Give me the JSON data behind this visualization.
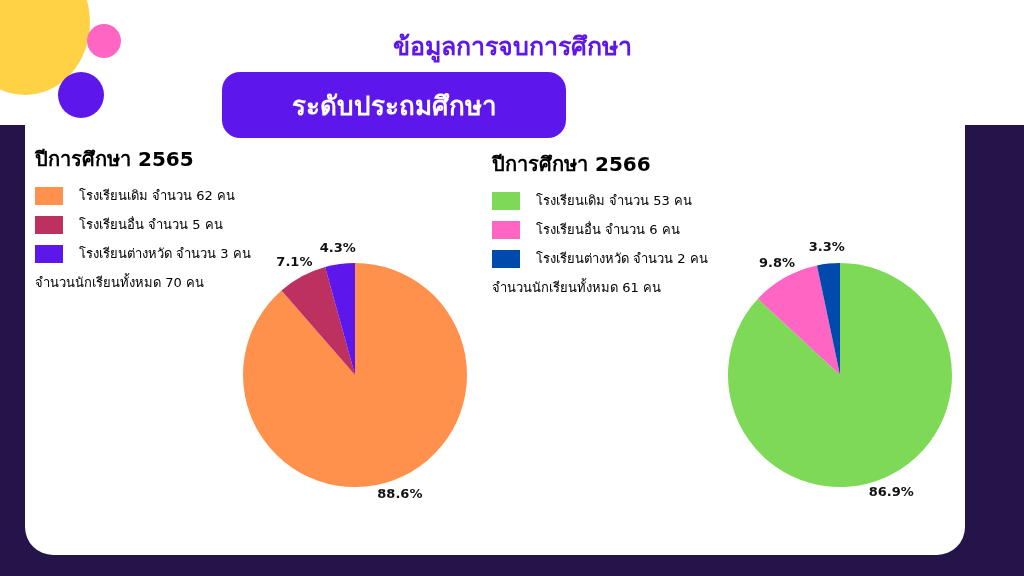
{
  "chart_data": [
    {
      "type": "pie",
      "title": "ปีการศึกษา 2565",
      "categories": [
        "โรงเรียนเดิม จำนวน 62 คน",
        "โรงเรียนอื่น จำนวน 5 คน",
        "โรงเรียนต่างหวัด จำนวน 3 คน"
      ],
      "values": [
        88.6,
        7.1,
        4.3
      ],
      "colors": [
        "#ff914d",
        "#bd3160",
        "#5e17eb"
      ],
      "value_labels": [
        "88.6%",
        "7.1%",
        "4.3%"
      ],
      "legend": "left",
      "annotations": [
        "ข้อมูลการจบการศึกษา",
        "ระดับประถมศึกษา",
        "จำนวนนักเรียนทั้งหมด 70 คน"
      ]
    },
    {
      "type": "pie",
      "title": "ปีการศึกษา 2566",
      "categories": [
        "โรงเรียนเดิม จำนวน 53 คน",
        "โรงเรียนอื่น จำนวน 6 คน",
        "โรงเรียนต่างหวัด จำนวน 2 คน"
      ],
      "values": [
        86.9,
        9.8,
        3.3
      ],
      "colors": [
        "#7ed957",
        "#ff66c4",
        "#004aad"
      ],
      "value_labels": [
        "86.9%",
        "9.8%",
        "3.3%"
      ],
      "legend": "left",
      "annotations": [
        "จำนวนนักเรียนทั้งหมด 61 คน"
      ]
    }
  ]
}
